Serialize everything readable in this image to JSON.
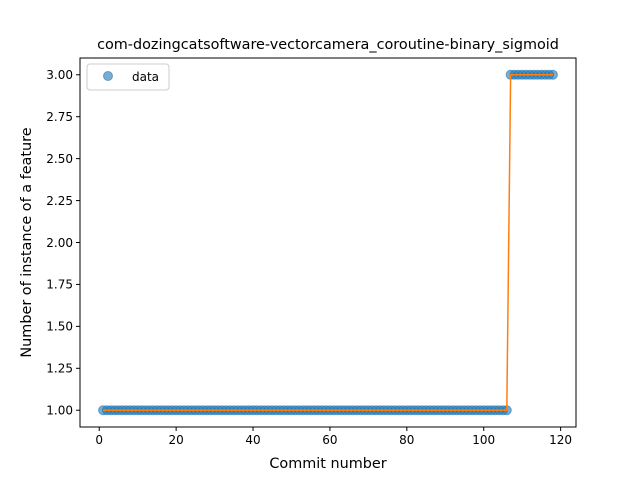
{
  "chart_data": {
    "type": "scatter",
    "title": "com-dozingcatsoftware-vectorcamera_coroutine-binary_sigmoid",
    "xlabel": "Commit number",
    "ylabel": "Number of instance of a feature",
    "xlim": [
      -5,
      124
    ],
    "ylim": [
      0.9,
      3.1
    ],
    "xticks": [
      0,
      20,
      40,
      60,
      80,
      100,
      120
    ],
    "xtick_labels": [
      "0",
      "20",
      "40",
      "60",
      "80",
      "100",
      "120"
    ],
    "yticks": [
      1.0,
      1.25,
      1.5,
      1.75,
      2.0,
      2.25,
      2.5,
      2.75,
      3.0
    ],
    "ytick_labels": [
      "1.00",
      "1.25",
      "1.50",
      "1.75",
      "2.00",
      "2.25",
      "2.50",
      "2.75",
      "3.00"
    ],
    "legend": {
      "entries": [
        "data"
      ],
      "placement": "upper-left"
    },
    "grid": false,
    "colors": {
      "points": "#1f77b4",
      "fit": "#ff7f0e"
    },
    "series": [
      {
        "name": "data",
        "kind": "points",
        "segments": [
          {
            "x_from": 1,
            "x_to": 106,
            "y": 1.0
          },
          {
            "x_from": 107,
            "x_to": 118,
            "y": 3.0
          }
        ]
      },
      {
        "kind": "line",
        "x": [
          1,
          106,
          107,
          118
        ],
        "y": [
          1.0,
          1.0,
          3.0,
          3.0
        ]
      }
    ]
  }
}
